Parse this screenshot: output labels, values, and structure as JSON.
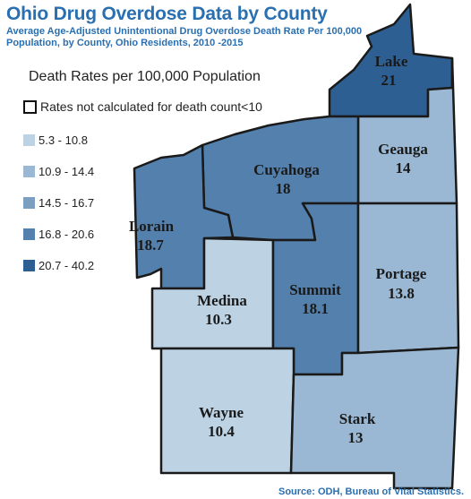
{
  "header": {
    "title": "Ohio Drug Overdose Data by County",
    "subtitle": "Average Age-Adjusted Unintentional Drug Overdose Death Rate Per 100,000 Population, by County, Ohio Residents, 2010 -2015"
  },
  "legend": {
    "title": "Death Rates per 100,000 Population",
    "note": "Rates not calculated for death count<10",
    "items": [
      {
        "label": "5.3 - 10.8",
        "color": "#bdd3e4"
      },
      {
        "label": "10.9 - 14.4",
        "color": "#9ab8d3"
      },
      {
        "label": "14.5 - 16.7",
        "color": "#7b9fc1"
      },
      {
        "label": "16.8 - 20.6",
        "color": "#5480ad"
      },
      {
        "label": "20.7 - 40.2",
        "color": "#2e5f93"
      }
    ]
  },
  "counties": [
    {
      "name": "Lake",
      "rate": "21",
      "color": "#2e5f93"
    },
    {
      "name": "Geauga",
      "rate": "14",
      "color": "#9ab8d3"
    },
    {
      "name": "Cuyahoga",
      "rate": "18",
      "color": "#5480ad"
    },
    {
      "name": "Lorain",
      "rate": "18.7",
      "color": "#5480ad"
    },
    {
      "name": "Medina",
      "rate": "10.3",
      "color": "#bdd3e4"
    },
    {
      "name": "Summit",
      "rate": "18.1",
      "color": "#5480ad"
    },
    {
      "name": "Portage",
      "rate": "13.8",
      "color": "#9ab8d3"
    },
    {
      "name": "Wayne",
      "rate": "10.4",
      "color": "#bdd3e4"
    },
    {
      "name": "Stark",
      "rate": "13",
      "color": "#9ab8d3"
    }
  ],
  "source": "Source: ODH, Bureau of Vital Statistics."
}
